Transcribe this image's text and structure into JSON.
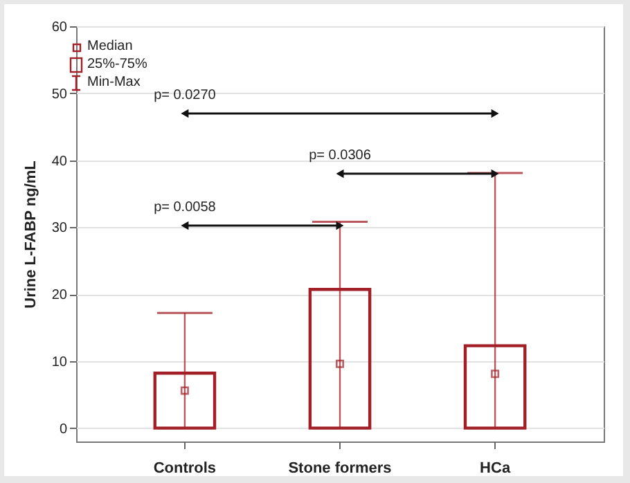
{
  "chart_data": {
    "type": "box",
    "ylabel": "Urine L-FABP ng/mL",
    "categories": [
      "Controls",
      "Stone formers",
      "HCa"
    ],
    "boxes": [
      {
        "low": 0,
        "q1": 0,
        "median": 5.6,
        "q3": 8.2,
        "high": 17.2
      },
      {
        "low": 0,
        "q1": 0,
        "median": 9.6,
        "q3": 20.7,
        "high": 30.8
      },
      {
        "low": 0,
        "q1": 0,
        "median": 8.1,
        "q3": 12.3,
        "high": 38.1
      }
    ],
    "color": "#a31f27",
    "ylim": [
      -2,
      60
    ],
    "yticks": [
      0,
      10,
      20,
      30,
      40,
      50,
      60
    ],
    "grid": "y",
    "annotations": [
      "Median",
      "25%-75%",
      "Min-Max",
      "p= 0.0270",
      "p= 0.0306",
      "p= 0.0058"
    ]
  }
}
